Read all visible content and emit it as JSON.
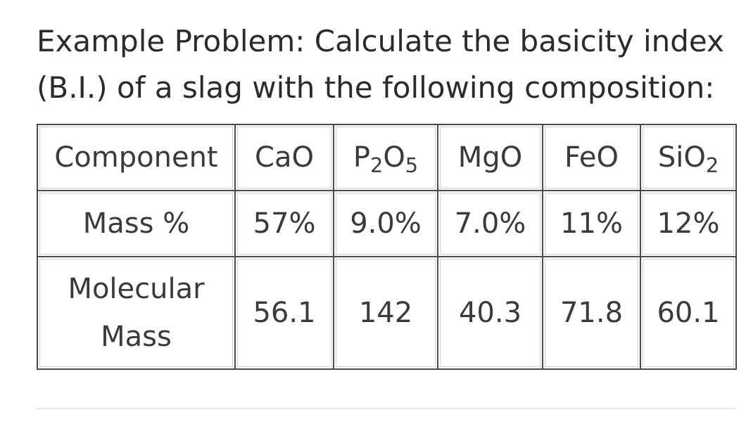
{
  "problem": {
    "text": "Example Problem: Calculate the basicity index (B.I.) of a slag with the following composition:"
  },
  "table": {
    "header_label": "Component",
    "components": [
      {
        "base": "CaO",
        "sub": "",
        "tail": ""
      },
      {
        "base": "P",
        "sub": "2",
        "tail": "O",
        "sub2": "5"
      },
      {
        "base": "MgO",
        "sub": "",
        "tail": ""
      },
      {
        "base": "FeO",
        "sub": "",
        "tail": ""
      },
      {
        "base": "SiO",
        "sub": "2",
        "tail": ""
      }
    ],
    "mass_percent_label": "Mass %",
    "mass_percent": [
      "57%",
      "9.0%",
      "7.0%",
      "11%",
      "12%"
    ],
    "molecular_mass_label_line1": "Molecular",
    "molecular_mass_label_line2": "Mass",
    "molecular_mass": [
      "56.1",
      "142",
      "40.3",
      "71.8",
      "60.1"
    ]
  }
}
